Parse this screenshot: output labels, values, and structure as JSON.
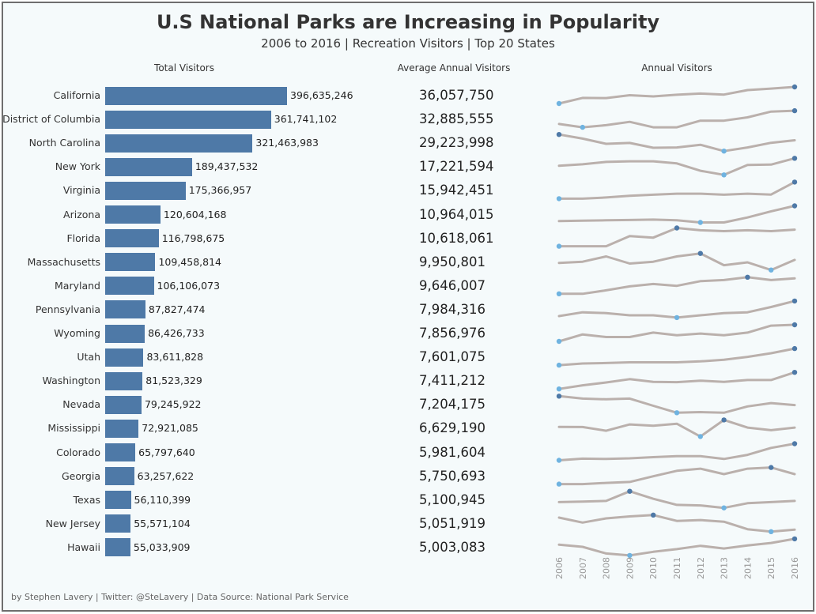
{
  "header": {
    "title": "U.S National Parks are Increasing in Popularity",
    "subtitle": "2006 to 2016 | Recreation Visitors | Top 20 States"
  },
  "columns": {
    "total": "Total Visitors",
    "average": "Average Annual Visitors",
    "annual": "Annual Visitors"
  },
  "footer": "by Stephen Lavery | Twitter: @SteLavery | Data Source: National Park Service",
  "colors": {
    "bar": "#4e79a7",
    "sparkline": "#bab0ac",
    "max_point": "#4e79a7",
    "min_point": "#6fb3e0"
  },
  "chart_data": {
    "type": "bar",
    "x_years": [
      "2006",
      "2007",
      "2008",
      "2009",
      "2010",
      "2011",
      "2012",
      "2013",
      "2014",
      "2015",
      "2016"
    ],
    "rows": [
      {
        "state": "California",
        "total": 396635246,
        "total_label": "396,635,246",
        "avg_label": "36,057,750",
        "annual_index": [
          0.0,
          0.34,
          0.33,
          0.5,
          0.43,
          0.53,
          0.6,
          0.54,
          0.81,
          0.9,
          1.0
        ]
      },
      {
        "state": "District of Columbia",
        "total": 361741102,
        "total_label": "361,741,102",
        "avg_label": "32,885,555",
        "annual_index": [
          0.2,
          0.0,
          0.13,
          0.33,
          0.0,
          0.0,
          0.4,
          0.4,
          0.6,
          0.95,
          1.0
        ]
      },
      {
        "state": "North Carolina",
        "total": 321463983,
        "total_label": "321,463,983",
        "avg_label": "29,223,998",
        "annual_index": [
          1.0,
          0.75,
          0.44,
          0.49,
          0.2,
          0.22,
          0.38,
          0.0,
          0.22,
          0.5,
          0.65
        ]
      },
      {
        "state": "New York",
        "total": 189437532,
        "total_label": "189,437,532",
        "avg_label": "17,221,594",
        "annual_index": [
          0.55,
          0.64,
          0.78,
          0.82,
          0.82,
          0.69,
          0.25,
          0.0,
          0.6,
          0.62,
          1.0
        ]
      },
      {
        "state": "Virginia",
        "total": 175366957,
        "total_label": "175,366,957",
        "avg_label": "15,942,451",
        "annual_index": [
          0.0,
          0.0,
          0.07,
          0.17,
          0.24,
          0.3,
          0.3,
          0.24,
          0.3,
          0.25,
          1.0
        ]
      },
      {
        "state": "Arizona",
        "total": 120604168,
        "total_label": "120,604,168",
        "avg_label": "10,964,015",
        "annual_index": [
          0.08,
          0.11,
          0.13,
          0.15,
          0.17,
          0.13,
          0.0,
          0.0,
          0.3,
          0.67,
          1.0
        ]
      },
      {
        "state": "Florida",
        "total": 116798675,
        "total_label": "116,798,675",
        "avg_label": "10,618,061",
        "annual_index": [
          0.0,
          0.0,
          0.0,
          0.61,
          0.52,
          1.1,
          0.96,
          0.91,
          0.96,
          0.91,
          1.0
        ]
      },
      {
        "state": "Massachusetts",
        "total": 109458814,
        "total_label": "109,458,814",
        "avg_label": "9,950,801",
        "annual_index": [
          0.43,
          0.5,
          0.82,
          0.39,
          0.5,
          0.82,
          1.0,
          0.29,
          0.46,
          0.0,
          0.61
        ]
      },
      {
        "state": "Maryland",
        "total": 106106073,
        "total_label": "106,106,073",
        "avg_label": "9,646,007",
        "annual_index": [
          0.0,
          0.0,
          0.21,
          0.45,
          0.59,
          0.48,
          0.76,
          0.83,
          1.0,
          0.83,
          0.93
        ]
      },
      {
        "state": "Pennsylvania",
        "total": 87827474,
        "total_label": "87,827,474",
        "avg_label": "7,984,316",
        "annual_index": [
          0.09,
          0.32,
          0.27,
          0.14,
          0.14,
          0.0,
          0.14,
          0.27,
          0.32,
          0.64,
          1.0
        ]
      },
      {
        "state": "Wyoming",
        "total": 86426733,
        "total_label": "86,426,733",
        "avg_label": "7,856,976",
        "annual_index": [
          0.0,
          0.42,
          0.26,
          0.26,
          0.53,
          0.37,
          0.47,
          0.37,
          0.53,
          0.95,
          1.0
        ]
      },
      {
        "state": "Utah",
        "total": 83611828,
        "total_label": "83,611,828",
        "avg_label": "7,601,075",
        "annual_index": [
          0.0,
          0.1,
          0.13,
          0.17,
          0.17,
          0.17,
          0.23,
          0.33,
          0.5,
          0.72,
          1.0
        ]
      },
      {
        "state": "Washington",
        "total": 81523329,
        "total_label": "81,523,329",
        "avg_label": "7,411,212",
        "annual_index": [
          0.0,
          0.22,
          0.39,
          0.59,
          0.43,
          0.41,
          0.5,
          0.43,
          0.54,
          0.54,
          1.0
        ]
      },
      {
        "state": "Nevada",
        "total": 79245922,
        "total_label": "79,245,922",
        "avg_label": "7,204,175",
        "annual_index": [
          1.0,
          0.85,
          0.81,
          0.85,
          0.42,
          0.0,
          0.04,
          0.0,
          0.38,
          0.58,
          0.46
        ]
      },
      {
        "state": "Mississippi",
        "total": 72921085,
        "total_label": "72,921,085",
        "avg_label": "6,629,190",
        "annual_index": [
          0.58,
          0.57,
          0.35,
          0.73,
          0.65,
          0.77,
          0.0,
          1.0,
          0.54,
          0.38,
          0.54
        ]
      },
      {
        "state": "Colorado",
        "total": 65797640,
        "total_label": "65,797,640",
        "avg_label": "5,981,604",
        "annual_index": [
          0.0,
          0.1,
          0.08,
          0.12,
          0.19,
          0.25,
          0.25,
          0.08,
          0.33,
          0.75,
          1.0
        ]
      },
      {
        "state": "Georgia",
        "total": 63257622,
        "total_label": "63,257,622",
        "avg_label": "5,750,693",
        "annual_index": [
          0.0,
          0.0,
          0.07,
          0.13,
          0.47,
          0.8,
          0.93,
          0.6,
          0.93,
          1.0,
          0.6
        ]
      },
      {
        "state": "Texas",
        "total": 56110399,
        "total_label": "56,110,399",
        "avg_label": "5,100,945",
        "annual_index": [
          0.35,
          0.38,
          0.42,
          1.0,
          0.55,
          0.18,
          0.15,
          0.0,
          0.28,
          0.35,
          0.42
        ]
      },
      {
        "state": "New Jersey",
        "total": 55571104,
        "total_label": "55,571,104",
        "avg_label": "5,051,919",
        "annual_index": [
          0.85,
          0.55,
          0.8,
          0.92,
          1.0,
          0.65,
          0.7,
          0.6,
          0.15,
          0.0,
          0.12
        ]
      },
      {
        "state": "Hawaii",
        "total": 55033909,
        "total_label": "55,033,909",
        "avg_label": "5,003,083",
        "annual_index": [
          0.65,
          0.52,
          0.12,
          0.0,
          0.22,
          0.38,
          0.58,
          0.42,
          0.6,
          0.75,
          1.0
        ]
      }
    ]
  }
}
